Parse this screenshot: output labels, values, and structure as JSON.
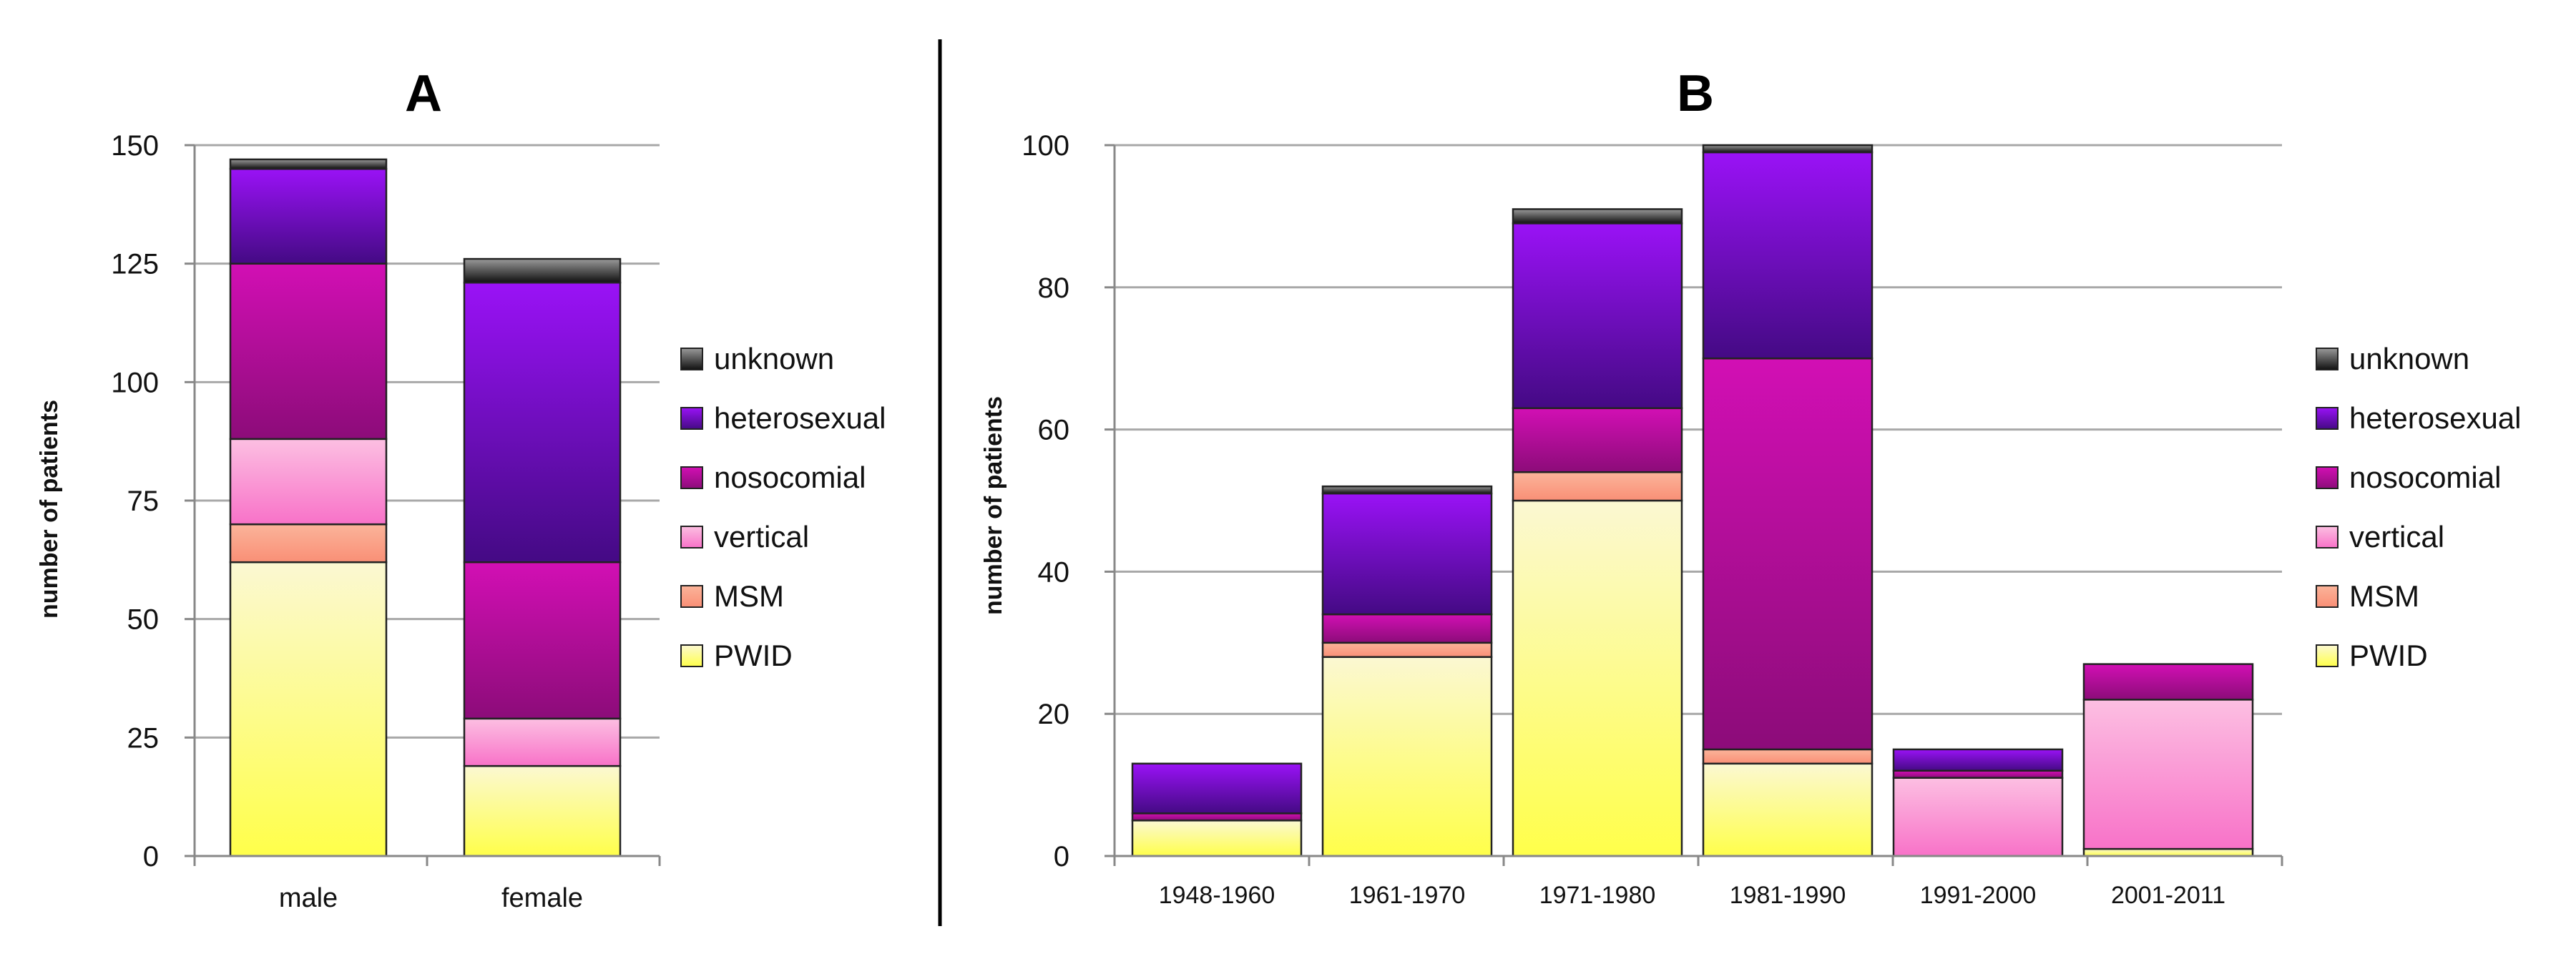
{
  "series_styles": [
    {
      "name": "PWID",
      "top": "#fbf8d2",
      "bottom": "#ffff4a"
    },
    {
      "name": "MSM",
      "top": "#fbb49a",
      "bottom": "#f98f76"
    },
    {
      "name": "vertical",
      "top": "#fcbfe2",
      "bottom": "#f872c8"
    },
    {
      "name": "nosocomial",
      "top": "#d20fb4",
      "bottom": "#8c0c79"
    },
    {
      "name": "heterosexual",
      "top": "#9a12f6",
      "bottom": "#440a84"
    },
    {
      "name": "unknown",
      "top": "#9a9a9a",
      "bottom": "#111111"
    }
  ],
  "chart_data": [
    {
      "panel": "A",
      "type": "bar",
      "stacked": true,
      "title": "A",
      "xlabel": "",
      "ylabel": "number of patients",
      "ylim": [
        0,
        150
      ],
      "yticks": [
        "0",
        "25",
        "50",
        "75",
        "100",
        "125",
        "150"
      ],
      "categories": [
        "male",
        "female"
      ],
      "legend": [
        "unknown",
        "heterosexual",
        "nosocomial",
        "vertical",
        "MSM",
        "PWID"
      ],
      "legend_position": "right",
      "series": [
        {
          "name": "PWID",
          "values": [
            62,
            19
          ]
        },
        {
          "name": "MSM",
          "values": [
            8,
            0
          ]
        },
        {
          "name": "vertical",
          "values": [
            18,
            10
          ]
        },
        {
          "name": "nosocomial",
          "values": [
            37,
            33
          ]
        },
        {
          "name": "heterosexual",
          "values": [
            20,
            59
          ]
        },
        {
          "name": "unknown",
          "values": [
            2,
            5
          ]
        }
      ]
    },
    {
      "panel": "B",
      "type": "bar",
      "stacked": true,
      "title": "B",
      "xlabel": "",
      "ylabel": "number of patients",
      "ylim": [
        0,
        100
      ],
      "yticks": [
        "0",
        "20",
        "40",
        "60",
        "80",
        "100"
      ],
      "categories": [
        "1948-1960",
        "1961-1970",
        "1971-1980",
        "1981-1990",
        "1991-2000",
        "2001-2011"
      ],
      "legend": [
        "unknown",
        "heterosexual",
        "nosocomial",
        "vertical",
        "MSM",
        "PWID"
      ],
      "legend_position": "right",
      "series": [
        {
          "name": "PWID",
          "values": [
            5,
            28,
            50,
            13,
            0,
            1
          ]
        },
        {
          "name": "MSM",
          "values": [
            0,
            2,
            4,
            2,
            0,
            0
          ]
        },
        {
          "name": "vertical",
          "values": [
            0,
            0,
            0,
            0,
            11,
            21
          ]
        },
        {
          "name": "nosocomial",
          "values": [
            1,
            4,
            9,
            55,
            1,
            5
          ]
        },
        {
          "name": "heterosexual",
          "values": [
            7,
            17,
            26,
            29,
            3,
            0
          ]
        },
        {
          "name": "unknown",
          "values": [
            0,
            1,
            2,
            1,
            0,
            0
          ]
        }
      ]
    }
  ]
}
